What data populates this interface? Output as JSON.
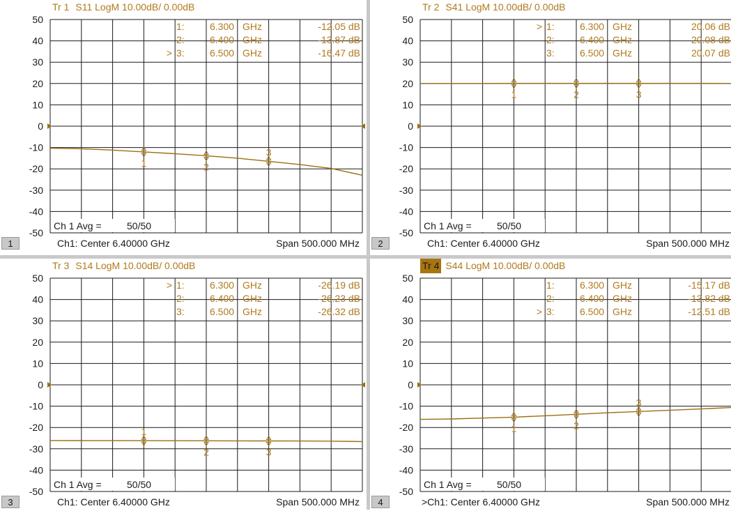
{
  "y_ticks": [
    "50",
    "40",
    "30",
    "20",
    "10",
    "0",
    "-10",
    "-20",
    "-30",
    "-40",
    "-50"
  ],
  "colors": {
    "trace": "#9b6e12",
    "text": "#b07a1e",
    "grid": "#1a1a1a",
    "active_label_bg": "#a87410",
    "divider": "#c9c9c9",
    "avg_text": "#1a1a1a"
  },
  "panels": [
    {
      "id": 1,
      "tr_label": "Tr 1",
      "active": false,
      "title_rest": "S11 LogM 10.00dB/ 0.00dB",
      "panel_number": "1",
      "status_center": "Ch1:  Center  6.40000 GHz",
      "status_span": "Span  500.000 MHz",
      "avg_label": "Ch 1 Avg =",
      "avg_value": "50/50",
      "markers_table": [
        {
          "prefix": "",
          "idx": "1:",
          "freq": "6.300",
          "unit": "GHz",
          "value": "-12.05 dB"
        },
        {
          "prefix": "",
          "idx": "2:",
          "freq": "6.400",
          "unit": "GHz",
          "value": "-13.87 dB"
        },
        {
          "prefix": ">",
          "idx": "3:",
          "freq": "6.500",
          "unit": "GHz",
          "value": "-16.47 dB"
        }
      ],
      "chart_data": {
        "type": "line",
        "ylim": [
          -50,
          50
        ],
        "x": [
          6.15,
          6.2,
          6.25,
          6.3,
          6.35,
          6.4,
          6.45,
          6.5,
          6.55,
          6.6,
          6.65
        ],
        "series": [
          {
            "values": [
              -10.3,
              -10.6,
              -11.2,
              -12.05,
              -12.9,
              -13.87,
              -15.0,
              -16.47,
              -18.0,
              -19.8,
              -23.0
            ]
          }
        ],
        "markers": [
          {
            "label": "1",
            "x": 6.3,
            "y": -12.05,
            "label_pos": "below"
          },
          {
            "label": "2",
            "x": 6.4,
            "y": -13.87,
            "label_pos": "below"
          },
          {
            "label": "3",
            "x": 6.5,
            "y": -16.47,
            "label_pos": "above"
          }
        ]
      }
    },
    {
      "id": 2,
      "tr_label": "Tr 2",
      "active": false,
      "title_rest": "S41 LogM 10.00dB/ 0.00dB",
      "panel_number": "2",
      "status_center": "Ch1:  Center  6.40000 GHz",
      "status_span": "Span  500.000 MHz",
      "avg_label": "Ch 1 Avg =",
      "avg_value": "50/50",
      "markers_table": [
        {
          "prefix": ">",
          "idx": "1:",
          "freq": "6.300",
          "unit": "GHz",
          "value": "20.06 dB"
        },
        {
          "prefix": "",
          "idx": "2:",
          "freq": "6.400",
          "unit": "GHz",
          "value": "20.08 dB"
        },
        {
          "prefix": "",
          "idx": "3:",
          "freq": "6.500",
          "unit": "GHz",
          "value": "20.07 dB"
        }
      ],
      "chart_data": {
        "type": "line",
        "ylim": [
          -50,
          50
        ],
        "x": [
          6.15,
          6.2,
          6.25,
          6.3,
          6.35,
          6.4,
          6.45,
          6.5,
          6.55,
          6.6,
          6.65
        ],
        "series": [
          {
            "values": [
              20.0,
              20.02,
              20.04,
              20.06,
              20.07,
              20.08,
              20.08,
              20.07,
              20.06,
              20.05,
              20.04
            ]
          }
        ],
        "markers": [
          {
            "label": "1",
            "x": 6.3,
            "y": 20.06,
            "label_pos": "below"
          },
          {
            "label": "2",
            "x": 6.4,
            "y": 20.08,
            "label_pos": "below"
          },
          {
            "label": "3",
            "x": 6.5,
            "y": 20.07,
            "label_pos": "below"
          }
        ]
      }
    },
    {
      "id": 3,
      "tr_label": "Tr 3",
      "active": false,
      "title_rest": "S14 LogM 10.00dB/ 0.00dB",
      "panel_number": "3",
      "status_center": "Ch1:  Center  6.40000 GHz",
      "status_span": "Span  500.000 MHz",
      "avg_label": "Ch 1 Avg =",
      "avg_value": "50/50",
      "markers_table": [
        {
          "prefix": ">",
          "idx": "1:",
          "freq": "6.300",
          "unit": "GHz",
          "value": "-26.19 dB"
        },
        {
          "prefix": "",
          "idx": "2:",
          "freq": "6.400",
          "unit": "GHz",
          "value": "-26.23 dB"
        },
        {
          "prefix": "",
          "idx": "3:",
          "freq": "6.500",
          "unit": "GHz",
          "value": "-26.32 dB"
        }
      ],
      "chart_data": {
        "type": "line",
        "ylim": [
          -50,
          50
        ],
        "x": [
          6.15,
          6.2,
          6.25,
          6.3,
          6.35,
          6.4,
          6.45,
          6.5,
          6.55,
          6.6,
          6.65
        ],
        "series": [
          {
            "values": [
              -26.1,
              -26.15,
              -26.18,
              -26.19,
              -26.2,
              -26.23,
              -26.28,
              -26.32,
              -26.35,
              -26.4,
              -26.6
            ]
          }
        ],
        "markers": [
          {
            "label": "1",
            "x": 6.3,
            "y": -26.19,
            "label_pos": "above"
          },
          {
            "label": "2",
            "x": 6.4,
            "y": -26.23,
            "label_pos": "below"
          },
          {
            "label": "3",
            "x": 6.5,
            "y": -26.32,
            "label_pos": "below"
          }
        ]
      }
    },
    {
      "id": 4,
      "tr_label": "Tr 4",
      "active": true,
      "title_rest": "S44 LogM 10.00dB/ 0.00dB",
      "panel_number": "4",
      "status_center": ">Ch1:  Center  6.40000 GHz",
      "status_span": "Span  500.000 MHz",
      "avg_label": "Ch 1 Avg =",
      "avg_value": "50/50",
      "markers_table": [
        {
          "prefix": "",
          "idx": "1:",
          "freq": "6.300",
          "unit": "GHz",
          "value": "-15.17 dB"
        },
        {
          "prefix": "",
          "idx": "2:",
          "freq": "6.400",
          "unit": "GHz",
          "value": "-13.82 dB"
        },
        {
          "prefix": ">",
          "idx": "3:",
          "freq": "6.500",
          "unit": "GHz",
          "value": "-12.51 dB"
        }
      ],
      "chart_data": {
        "type": "line",
        "ylim": [
          -50,
          50
        ],
        "x": [
          6.15,
          6.2,
          6.25,
          6.3,
          6.35,
          6.4,
          6.45,
          6.5,
          6.55,
          6.6,
          6.65
        ],
        "series": [
          {
            "values": [
              -16.2,
              -16.0,
              -15.6,
              -15.17,
              -14.5,
              -13.82,
              -13.1,
              -12.51,
              -11.9,
              -11.3,
              -10.6
            ]
          }
        ],
        "markers": [
          {
            "label": "1",
            "x": 6.3,
            "y": -15.17,
            "label_pos": "below"
          },
          {
            "label": "2",
            "x": 6.4,
            "y": -13.82,
            "label_pos": "below"
          },
          {
            "label": "3",
            "x": 6.5,
            "y": -12.51,
            "label_pos": "above"
          }
        ]
      }
    }
  ]
}
